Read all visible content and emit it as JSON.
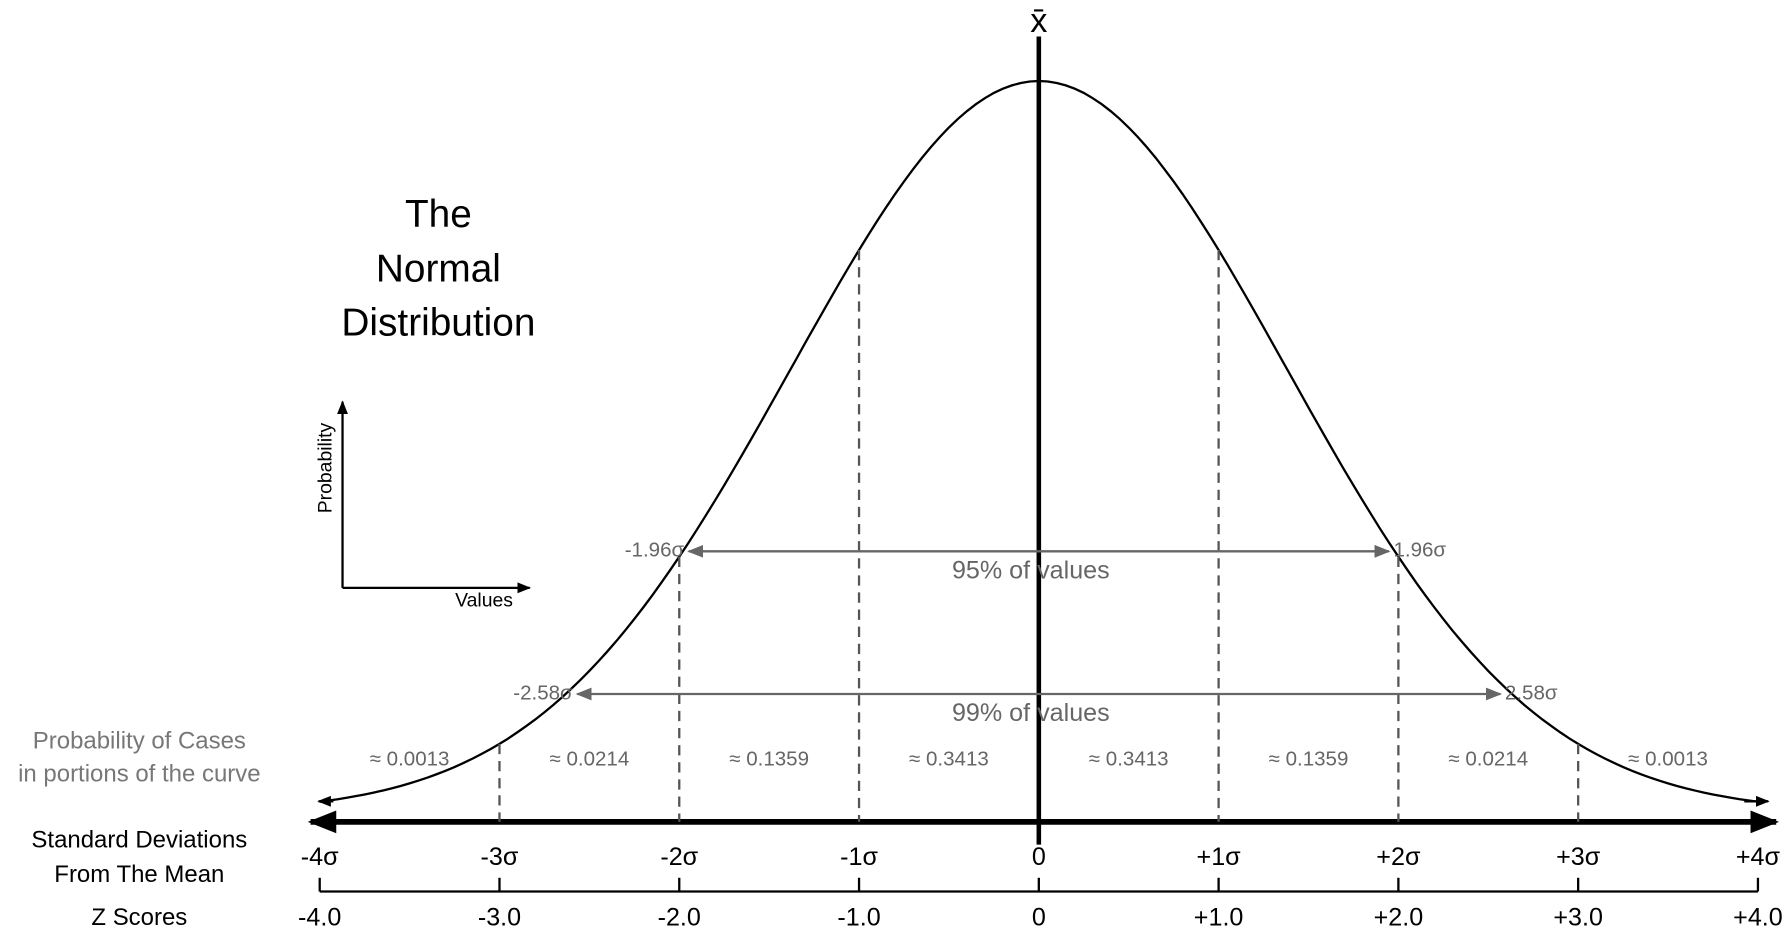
{
  "mean_symbol": "x̄",
  "title_lines": [
    "The",
    "Normal",
    "Distribution"
  ],
  "inset": {
    "y_label": "Probability",
    "x_label": "Values"
  },
  "intervals": [
    {
      "lower": "-1.96σ",
      "upper": "1.96σ",
      "label": "95% of values"
    },
    {
      "lower": "-2.58σ",
      "upper": "2.58σ",
      "label": "99% of values"
    }
  ],
  "probability_row": {
    "label_lines": [
      "Probability of Cases",
      "in portions of the curve"
    ],
    "portions": [
      "≈ 0.0013",
      "≈ 0.0214",
      "≈ 0.1359",
      "≈ 0.3413",
      "≈ 0.3413",
      "≈ 0.1359",
      "≈ 0.0214",
      "≈ 0.0013"
    ]
  },
  "sd_row": {
    "label_lines": [
      "Standard Deviations",
      "From The Mean"
    ],
    "ticks": [
      "-4σ",
      "-3σ",
      "-2σ",
      "-1σ",
      "0",
      "+1σ",
      "+2σ",
      "+3σ",
      "+4σ"
    ]
  },
  "z_row": {
    "label": "Z Scores",
    "ticks": [
      "-4.0",
      "-3.0",
      "-2.0",
      "-1.0",
      "0",
      "+1.0",
      "+2.0",
      "+3.0",
      "+4.0"
    ]
  }
}
